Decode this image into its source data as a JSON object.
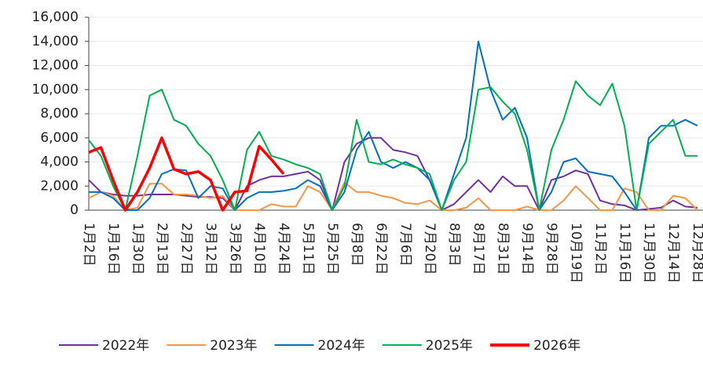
{
  "chart_data": {
    "type": "line",
    "categories": [
      "1月2日",
      null,
      "1月16日",
      null,
      "1月30日",
      null,
      "2月13日",
      null,
      "2月27日",
      null,
      "3月12日",
      null,
      "3月26日",
      null,
      "4月10日",
      null,
      "4月24日",
      null,
      "5月11日",
      null,
      "5月25日",
      null,
      "6月8日",
      null,
      "6月22日",
      null,
      "7月6日",
      null,
      "7月20日",
      null,
      "8月3日",
      null,
      "8月17日",
      null,
      "8月31日",
      null,
      "9月14日",
      null,
      "9月28日",
      null,
      "10月19日",
      null,
      "11月2日",
      null,
      "11月16日",
      null,
      "11月30日",
      null,
      "12月14日",
      null,
      "12月28日"
    ],
    "series": [
      {
        "name": "2022年",
        "color": "#7030a0",
        "values": [
          2500,
          1500,
          1300,
          1200,
          1200,
          1300,
          1300,
          1300,
          1200,
          1100,
          1100,
          1000,
          0,
          2000,
          2500,
          2800,
          2800,
          3000,
          3200,
          2500,
          0,
          4000,
          5500,
          6000,
          6000,
          5000,
          4800,
          4500,
          2500,
          0,
          500,
          1500,
          2500,
          1500,
          2800,
          2000,
          2000,
          0,
          2500,
          2800,
          3300,
          3000,
          800,
          500,
          400,
          0,
          100,
          200,
          800,
          300,
          200
        ]
      },
      {
        "name": "2023年",
        "color": "#f79646",
        "values": [
          1000,
          1500,
          1200,
          0,
          200,
          2200,
          2200,
          1300,
          1300,
          1200,
          1000,
          1200,
          0,
          0,
          0,
          500,
          300,
          300,
          2000,
          1500,
          0,
          2300,
          1500,
          1500,
          1200,
          1000,
          600,
          500,
          800,
          0,
          0,
          200,
          1000,
          0,
          0,
          0,
          300,
          0,
          0,
          800,
          2000,
          1000,
          0,
          0,
          1800,
          1500,
          0,
          0,
          1200,
          1000,
          0
        ]
      },
      {
        "name": "2024年",
        "color": "#0070c0",
        "values": [
          1500,
          1500,
          1000,
          0,
          0,
          1000,
          3000,
          3400,
          3300,
          1000,
          2000,
          1800,
          0,
          1000,
          1500,
          1500,
          1600,
          1800,
          2500,
          2000,
          0,
          1500,
          5000,
          6500,
          4000,
          3500,
          4000,
          3500,
          2500,
          0,
          3000,
          6000,
          14000,
          10000,
          7500,
          8500,
          6000,
          0,
          1500,
          4000,
          4300,
          3200,
          3000,
          2800,
          1500,
          0,
          6000,
          7000,
          7000,
          7500,
          7000
        ]
      },
      {
        "name": "2025年",
        "color": "#00b050",
        "values": [
          5800,
          4500,
          2000,
          0,
          4500,
          9500,
          10000,
          7500,
          7000,
          5500,
          4500,
          2500,
          0,
          5000,
          6500,
          4500,
          4200,
          3800,
          3500,
          3000,
          0,
          2000,
          7500,
          4000,
          3800,
          4200,
          3800,
          3500,
          3000,
          0,
          2500,
          4000,
          10000,
          10200,
          9000,
          8000,
          5000,
          0,
          5000,
          7500,
          10700,
          9500,
          8700,
          10500,
          7000,
          0,
          5500,
          6500,
          7500,
          4500,
          4500
        ]
      },
      {
        "name": "2026年",
        "color": "#ff0000",
        "values": [
          4800,
          5200,
          2500,
          0,
          1500,
          3500,
          6000,
          3400,
          3000,
          3200,
          2500,
          0,
          1500,
          1600,
          5300,
          4200,
          3000,
          null,
          null,
          null,
          null,
          null,
          null,
          null,
          null,
          null,
          null,
          null,
          null,
          null,
          null,
          null,
          null,
          null,
          null,
          null,
          null,
          null,
          null,
          null,
          null,
          null,
          null,
          null,
          null,
          null,
          null,
          null,
          null,
          null,
          null
        ]
      }
    ],
    "ylim": [
      0,
      16000
    ],
    "yticks": [
      0,
      {
        "value": 2000,
        "label": "2,000"
      },
      {
        "value": 4000,
        "label": "4,000"
      },
      {
        "value": 6000,
        "label": "6,000"
      },
      {
        "value": 8000,
        "label": "8,000"
      },
      {
        "value": 10000,
        "label": "10,000"
      },
      {
        "value": 12000,
        "label": "12,000"
      },
      {
        "value": 14000,
        "label": "14,000"
      },
      {
        "value": 16000,
        "label": "16,000"
      }
    ],
    "grid": true
  }
}
